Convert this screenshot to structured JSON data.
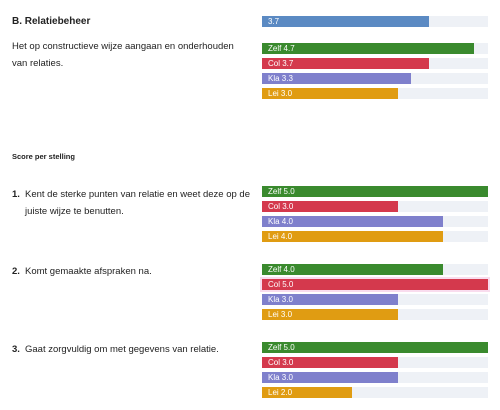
{
  "section": {
    "title": "B. Relatiebeheer",
    "description": "Het op constructieve wijze aangaan en onderhouden van relaties."
  },
  "subheading": "Score per stelling",
  "colors": {
    "avg": "#5b8ac3",
    "zelf": "#3a8a2e",
    "col": "#d4394d",
    "kla": "#7f80cc",
    "lei": "#e09c12",
    "track": "#eef1f6"
  },
  "chart_data": [
    {
      "type": "bar",
      "orientation": "horizontal",
      "title": "B. Relatiebeheer",
      "xlim": [
        0,
        5
      ],
      "bars": [
        {
          "label": "3.7",
          "value": 3.7,
          "color": "#5b8ac3"
        }
      ]
    },
    {
      "type": "bar",
      "orientation": "horizontal",
      "title": "B. Relatiebeheer",
      "xlim": [
        0,
        5
      ],
      "bars": [
        {
          "label": "Zelf 4.7",
          "value": 4.7,
          "color": "#3a8a2e"
        },
        {
          "label": "Col 3.7",
          "value": 3.7,
          "color": "#d4394d"
        },
        {
          "label": "Kla 3.3",
          "value": 3.3,
          "color": "#7f80cc"
        },
        {
          "label": "Lei 3.0",
          "value": 3.0,
          "color": "#e09c12"
        }
      ]
    },
    {
      "type": "bar",
      "orientation": "horizontal",
      "number": "1.",
      "title": "Kent de sterke punten van relatie en weet deze op de juiste wijze te benutten.",
      "xlim": [
        0,
        5
      ],
      "bars": [
        {
          "label": "Zelf 5.0",
          "value": 5.0,
          "color": "#3a8a2e"
        },
        {
          "label": "Col 3.0",
          "value": 3.0,
          "color": "#d4394d"
        },
        {
          "label": "Kla 4.0",
          "value": 4.0,
          "color": "#7f80cc"
        },
        {
          "label": "Lei 4.0",
          "value": 4.0,
          "color": "#e09c12"
        }
      ]
    },
    {
      "type": "bar",
      "orientation": "horizontal",
      "number": "2.",
      "title": "Komt gemaakte afspraken na.",
      "xlim": [
        0,
        5
      ],
      "bars": [
        {
          "label": "Zelf 4.0",
          "value": 4.0,
          "color": "#3a8a2e"
        },
        {
          "label": "Col 5.0",
          "value": 5.0,
          "color": "#d4394d"
        },
        {
          "label": "Kla 3.0",
          "value": 3.0,
          "color": "#7f80cc"
        },
        {
          "label": "Lei 3.0",
          "value": 3.0,
          "color": "#e09c12"
        }
      ]
    },
    {
      "type": "bar",
      "orientation": "horizontal",
      "number": "3.",
      "title": "Gaat zorgvuldig om met gegevens van relatie.",
      "xlim": [
        0,
        5
      ],
      "bars": [
        {
          "label": "Zelf 5.0",
          "value": 5.0,
          "color": "#3a8a2e"
        },
        {
          "label": "Col 3.0",
          "value": 3.0,
          "color": "#d4394d"
        },
        {
          "label": "Kla 3.0",
          "value": 3.0,
          "color": "#7f80cc"
        },
        {
          "label": "Lei 2.0",
          "value": 2.0,
          "color": "#e09c12"
        }
      ]
    }
  ]
}
